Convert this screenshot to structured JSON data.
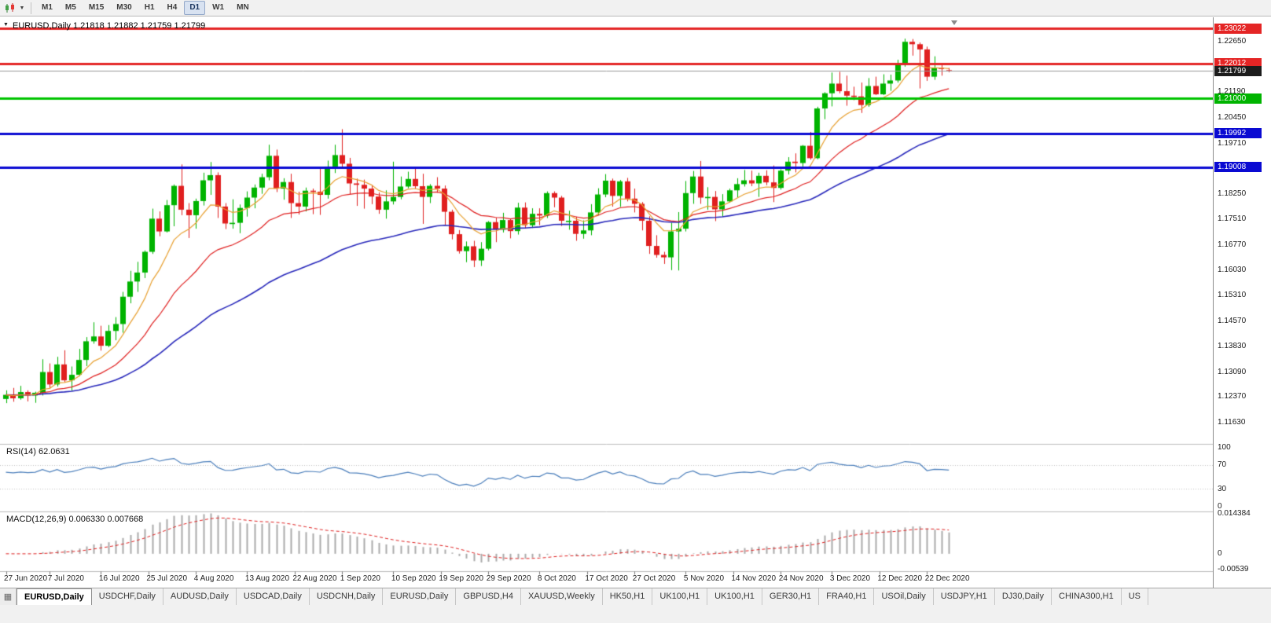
{
  "toolbar": {
    "timeframes": [
      "M1",
      "M5",
      "M15",
      "M30",
      "H1",
      "H4",
      "D1",
      "W1",
      "MN"
    ],
    "active_timeframe": "D1"
  },
  "main_chart": {
    "title": "EURUSD,Daily 1.21818 1.21882 1.21759 1.21799",
    "symbol": "EURUSD,Daily",
    "open": "1.21818",
    "high": "1.21882",
    "low": "1.21759",
    "close": "1.21799"
  },
  "panes": {
    "rsi_label": "RSI(14) 62.0631",
    "macd_label": "MACD(12,26,9) 0.006330 0.007668"
  },
  "chart_data": [
    {
      "type": "candlestick",
      "title": "EURUSD,Daily",
      "ylim": [
        1.11,
        1.2335
      ],
      "up_color": "#00b300",
      "down_color": "#e01f1f",
      "y_axis_labels": [
        "1.22650",
        "1.21930",
        "1.21190",
        "1.20450",
        "1.19710",
        "1.18970",
        "1.18250",
        "1.17510",
        "1.16770",
        "1.16030",
        "1.15310",
        "1.14570",
        "1.13830",
        "1.13090",
        "1.12370",
        "1.11630"
      ],
      "levels": [
        {
          "label": "1.23022",
          "value": 1.23022,
          "color": "#e42525",
          "badge": "#e42525",
          "width": 3,
          "style": "solid"
        },
        {
          "label": "1.22012",
          "value": 1.22012,
          "color": "#e42525",
          "badge": "#e42525",
          "width": 3,
          "style": "solid"
        },
        {
          "label": "1.21799",
          "value": 1.21799,
          "color": "#9a9a9a",
          "badge": "#1c1c1c",
          "width": 1,
          "style": "bid"
        },
        {
          "label": "1.21000",
          "value": 1.21,
          "color": "#00c400",
          "badge": "#00b400",
          "width": 3,
          "style": "solid"
        },
        {
          "label": "1.19992",
          "value": 1.19992,
          "color": "#0a0ad2",
          "badge": "#0a0ad2",
          "width": 3,
          "style": "solid"
        },
        {
          "label": "1.19008",
          "value": 1.19008,
          "color": "#0a0ad2",
          "badge": "#0a0ad2",
          "width": 3,
          "style": "solid"
        }
      ],
      "overlays": [
        {
          "name": "ma-slow",
          "period": 50,
          "color": "#2828bb",
          "width": 1.6
        },
        {
          "name": "ma-medium",
          "period": 20,
          "color": "#e02020",
          "width": 1.2
        },
        {
          "name": "ma-fast",
          "period": 8,
          "color": "#e8a030",
          "width": 1.2
        }
      ],
      "x_ticks": [
        {
          "label": "27 Jun 2020",
          "i": 1
        },
        {
          "label": "7 Jul 2020",
          "i": 7
        },
        {
          "label": "16 Jul 2020",
          "i": 14
        },
        {
          "label": "25 Jul 2020",
          "i": 20.5
        },
        {
          "label": "4 Aug 2020",
          "i": 27
        },
        {
          "label": "13 Aug 2020",
          "i": 34
        },
        {
          "label": "22 Aug 2020",
          "i": 40.5
        },
        {
          "label": "1 Sep 2020",
          "i": 47
        },
        {
          "label": "10 Sep 2020",
          "i": 54
        },
        {
          "label": "19 Sep 2020",
          "i": 60.5
        },
        {
          "label": "29 Sep 2020",
          "i": 67
        },
        {
          "label": "8 Oct 2020",
          "i": 74
        },
        {
          "label": "17 Oct 2020",
          "i": 80.5
        },
        {
          "label": "27 Oct 2020",
          "i": 87
        },
        {
          "label": "5 Nov 2020",
          "i": 94
        },
        {
          "label": "14 Nov 2020",
          "i": 100.5
        },
        {
          "label": "24 Nov 2020",
          "i": 107
        },
        {
          "label": "3 Dec 2020",
          "i": 114
        },
        {
          "label": "12 Dec 2020",
          "i": 120.5
        },
        {
          "label": "22 Dec 2020",
          "i": 127
        }
      ],
      "ohlc": [
        [
          1.123,
          1.1255,
          1.1218,
          1.1242
        ],
        [
          1.1242,
          1.1262,
          1.1222,
          1.1232
        ],
        [
          1.1232,
          1.1268,
          1.1228,
          1.125
        ],
        [
          1.125,
          1.1255,
          1.1223,
          1.124
        ],
        [
          1.124,
          1.1251,
          1.1219,
          1.1248
        ],
        [
          1.1248,
          1.1345,
          1.124,
          1.1308
        ],
        [
          1.1308,
          1.1333,
          1.1259,
          1.1272
        ],
        [
          1.1272,
          1.1352,
          1.1266,
          1.133
        ],
        [
          1.133,
          1.1371,
          1.1279,
          1.1284
        ],
        [
          1.1284,
          1.1324,
          1.1254,
          1.13
        ],
        [
          1.13,
          1.1375,
          1.1296,
          1.1343
        ],
        [
          1.1343,
          1.1409,
          1.1325,
          1.1397
        ],
        [
          1.1397,
          1.1452,
          1.139,
          1.1411
        ],
        [
          1.1411,
          1.1442,
          1.137,
          1.1384
        ],
        [
          1.1384,
          1.1444,
          1.138,
          1.1427
        ],
        [
          1.1427,
          1.1467,
          1.14,
          1.1447
        ],
        [
          1.1447,
          1.154,
          1.1422,
          1.1526
        ],
        [
          1.1526,
          1.1601,
          1.1507,
          1.157
        ],
        [
          1.157,
          1.1627,
          1.154,
          1.1596
        ],
        [
          1.1596,
          1.166,
          1.158,
          1.1656
        ],
        [
          1.1656,
          1.1781,
          1.165,
          1.1752
        ],
        [
          1.1752,
          1.1773,
          1.1701,
          1.1715
        ],
        [
          1.1715,
          1.1806,
          1.1712,
          1.1791
        ],
        [
          1.1791,
          1.1851,
          1.173,
          1.1847
        ],
        [
          1.1847,
          1.1909,
          1.1762,
          1.1778
        ],
        [
          1.1778,
          1.1797,
          1.1696,
          1.1762
        ],
        [
          1.1762,
          1.181,
          1.1723,
          1.1803
        ],
        [
          1.1803,
          1.1885,
          1.179,
          1.1863
        ],
        [
          1.1863,
          1.1916,
          1.1821,
          1.1878
        ],
        [
          1.1878,
          1.1886,
          1.1754,
          1.1787
        ],
        [
          1.1787,
          1.1797,
          1.1722,
          1.1738
        ],
        [
          1.1738,
          1.1808,
          1.1723,
          1.174
        ],
        [
          1.174,
          1.1793,
          1.171,
          1.1783
        ],
        [
          1.1783,
          1.1831,
          1.1758,
          1.1813
        ],
        [
          1.1813,
          1.1851,
          1.1782,
          1.1842
        ],
        [
          1.1842,
          1.1882,
          1.1824,
          1.1872
        ],
        [
          1.1872,
          1.1966,
          1.1863,
          1.1934
        ],
        [
          1.1934,
          1.1952,
          1.1829,
          1.1839
        ],
        [
          1.1839,
          1.1869,
          1.1807,
          1.1858
        ],
        [
          1.1858,
          1.1882,
          1.1754,
          1.1797
        ],
        [
          1.1797,
          1.183,
          1.1764,
          1.1787
        ],
        [
          1.1787,
          1.1842,
          1.1773,
          1.1833
        ],
        [
          1.1833,
          1.1839,
          1.1765,
          1.183
        ],
        [
          1.183,
          1.19,
          1.1763,
          1.1821
        ],
        [
          1.1821,
          1.192,
          1.181,
          1.1903
        ],
        [
          1.1903,
          1.1966,
          1.1884,
          1.1936
        ],
        [
          1.1936,
          1.2011,
          1.1902,
          1.1911
        ],
        [
          1.1911,
          1.1928,
          1.1823,
          1.1854
        ],
        [
          1.1854,
          1.1868,
          1.1789,
          1.185
        ],
        [
          1.185,
          1.1865,
          1.1781,
          1.1839
        ],
        [
          1.1839,
          1.1849,
          1.1794,
          1.1816
        ],
        [
          1.1816,
          1.1828,
          1.1766,
          1.1778
        ],
        [
          1.1778,
          1.1834,
          1.1752,
          1.1802
        ],
        [
          1.1802,
          1.1917,
          1.1793,
          1.1815
        ],
        [
          1.1815,
          1.1874,
          1.1808,
          1.1845
        ],
        [
          1.1845,
          1.1888,
          1.184,
          1.1867
        ],
        [
          1.1867,
          1.1901,
          1.1838,
          1.1846
        ],
        [
          1.1846,
          1.1882,
          1.1737,
          1.1815
        ],
        [
          1.1815,
          1.1852,
          1.1797,
          1.1847
        ],
        [
          1.1847,
          1.1872,
          1.1827,
          1.1839
        ],
        [
          1.1839,
          1.1848,
          1.1732,
          1.1772
        ],
        [
          1.1772,
          1.1778,
          1.1692,
          1.1707
        ],
        [
          1.1707,
          1.1719,
          1.1651,
          1.1658
        ],
        [
          1.1658,
          1.1686,
          1.1626,
          1.1672
        ],
        [
          1.1672,
          1.1688,
          1.1612,
          1.1631
        ],
        [
          1.1631,
          1.1684,
          1.1615,
          1.1665
        ],
        [
          1.1665,
          1.1745,
          1.166,
          1.1742
        ],
        [
          1.1742,
          1.1755,
          1.1684,
          1.172
        ],
        [
          1.172,
          1.1769,
          1.1712,
          1.1748
        ],
        [
          1.1748,
          1.1751,
          1.1695,
          1.1716
        ],
        [
          1.1716,
          1.1798,
          1.1706,
          1.1784
        ],
        [
          1.1784,
          1.1799,
          1.1724,
          1.1733
        ],
        [
          1.1733,
          1.1782,
          1.1725,
          1.1766
        ],
        [
          1.1766,
          1.1782,
          1.1733,
          1.1761
        ],
        [
          1.1761,
          1.1831,
          1.1754,
          1.1826
        ],
        [
          1.1826,
          1.1831,
          1.1785,
          1.1813
        ],
        [
          1.1813,
          1.1818,
          1.1731,
          1.1746
        ],
        [
          1.1746,
          1.1775,
          1.172,
          1.1746
        ],
        [
          1.1746,
          1.1758,
          1.1688,
          1.1708
        ],
        [
          1.1708,
          1.1747,
          1.1694,
          1.1718
        ],
        [
          1.1718,
          1.1794,
          1.1704,
          1.177
        ],
        [
          1.177,
          1.184,
          1.1762,
          1.1822
        ],
        [
          1.1822,
          1.1881,
          1.1814,
          1.1862
        ],
        [
          1.1862,
          1.1868,
          1.1787,
          1.1818
        ],
        [
          1.1818,
          1.1864,
          1.1786,
          1.186
        ],
        [
          1.186,
          1.187,
          1.1802,
          1.181
        ],
        [
          1.181,
          1.1839,
          1.177,
          1.1795
        ],
        [
          1.1795,
          1.18,
          1.1718,
          1.1746
        ],
        [
          1.1746,
          1.1759,
          1.165,
          1.1673
        ],
        [
          1.1673,
          1.1704,
          1.1639,
          1.1647
        ],
        [
          1.1647,
          1.1656,
          1.1621,
          1.164
        ],
        [
          1.164,
          1.174,
          1.1603,
          1.1715
        ],
        [
          1.1715,
          1.1771,
          1.1602,
          1.1723
        ],
        [
          1.1723,
          1.1861,
          1.1715,
          1.1826
        ],
        [
          1.1826,
          1.189,
          1.1795,
          1.1874
        ],
        [
          1.1874,
          1.1919,
          1.1795,
          1.1813
        ],
        [
          1.1813,
          1.1843,
          1.1778,
          1.1815
        ],
        [
          1.1815,
          1.1832,
          1.1745,
          1.1779
        ],
        [
          1.1779,
          1.1823,
          1.1758,
          1.1802
        ],
        [
          1.1802,
          1.1839,
          1.1799,
          1.1834
        ],
        [
          1.1834,
          1.1869,
          1.1814,
          1.1852
        ],
        [
          1.1852,
          1.1893,
          1.1845,
          1.1863
        ],
        [
          1.1863,
          1.1891,
          1.1846,
          1.1854
        ],
        [
          1.1854,
          1.1885,
          1.1815,
          1.1876
        ],
        [
          1.1876,
          1.1892,
          1.1849,
          1.1857
        ],
        [
          1.1857,
          1.1906,
          1.18,
          1.1841
        ],
        [
          1.1841,
          1.1895,
          1.1836,
          1.1891
        ],
        [
          1.1891,
          1.193,
          1.188,
          1.1917
        ],
        [
          1.1917,
          1.1941,
          1.1886,
          1.1913
        ],
        [
          1.1913,
          1.1965,
          1.1903,
          1.1963
        ],
        [
          1.1963,
          1.2003,
          1.1923,
          1.1927
        ],
        [
          1.1927,
          1.2076,
          1.1924,
          1.2071
        ],
        [
          1.2071,
          1.2118,
          1.204,
          1.2115
        ],
        [
          1.2115,
          1.2175,
          1.2077,
          1.2143
        ],
        [
          1.2143,
          1.2177,
          1.2115,
          1.2121
        ],
        [
          1.2121,
          1.2166,
          1.2079,
          1.2108
        ],
        [
          1.2108,
          1.2134,
          1.2095,
          1.2106
        ],
        [
          1.2106,
          1.2146,
          1.2058,
          1.2081
        ],
        [
          1.2081,
          1.2159,
          1.2076,
          1.2136
        ],
        [
          1.2136,
          1.2163,
          1.211,
          1.2112
        ],
        [
          1.2112,
          1.217,
          1.211,
          1.2143
        ],
        [
          1.2143,
          1.2169,
          1.2122,
          1.2152
        ],
        [
          1.2152,
          1.2212,
          1.2146,
          1.22
        ],
        [
          1.22,
          1.2273,
          1.2192,
          1.2264
        ],
        [
          1.2264,
          1.2272,
          1.2224,
          1.2257
        ],
        [
          1.2257,
          1.2262,
          1.2129,
          1.2242
        ],
        [
          1.2242,
          1.225,
          1.2151,
          1.2163
        ],
        [
          1.2163,
          1.2222,
          1.2154,
          1.2189
        ],
        [
          1.2189,
          1.2198,
          1.2166,
          1.2187
        ],
        [
          1.21818,
          1.21882,
          1.21759,
          1.21799
        ]
      ]
    },
    {
      "type": "line",
      "name": "RSI(14)",
      "period": 14,
      "current": 62.0631,
      "color": "#4a7ebb",
      "guide_levels": [
        70,
        30
      ],
      "y_axis": [
        {
          "label": "100",
          "value": 100
        },
        {
          "label": "70",
          "value": 70
        },
        {
          "label": "30",
          "value": 30
        },
        {
          "label": "0",
          "value": 0
        }
      ],
      "scale": {
        "vmin": -8,
        "vmax": 104
      }
    },
    {
      "type": "macd",
      "name": "MACD(12,26,9)",
      "params": [
        12,
        26,
        9
      ],
      "current_macd": 0.00633,
      "current_signal": 0.007668,
      "histogram_color": "#ababab",
      "signal_color": "#e02020",
      "y_axis": [
        {
          "label": "0.014384",
          "value": 0.014384
        },
        {
          "label": "0",
          "value": 0
        },
        {
          "label": "-0.00539",
          "value": -0.00539
        }
      ],
      "scale": {
        "vmin": -0.0056,
        "vmax": 0.0147
      }
    }
  ],
  "tabbar": {
    "corner_icon": "window-list-icon",
    "items": [
      {
        "label": "EURUSD,Daily",
        "active": true
      },
      {
        "label": "USDCHF,Daily",
        "active": false
      },
      {
        "label": "AUDUSD,Daily",
        "active": false
      },
      {
        "label": "USDCAD,Daily",
        "active": false
      },
      {
        "label": "USDCNH,Daily",
        "active": false
      },
      {
        "label": "EURUSD,Daily",
        "active": false
      },
      {
        "label": "GBPUSD,H4",
        "active": false
      },
      {
        "label": "XAUUSD,Weekly",
        "active": false
      },
      {
        "label": "HK50,H1",
        "active": false
      },
      {
        "label": "UK100,H1",
        "active": false
      },
      {
        "label": "UK100,H1",
        "active": false
      },
      {
        "label": "GER30,H1",
        "active": false
      },
      {
        "label": "FRA40,H1",
        "active": false
      },
      {
        "label": "USOil,Daily",
        "active": false
      },
      {
        "label": "USDJPY,H1",
        "active": false
      },
      {
        "label": "DJ30,Daily",
        "active": false
      },
      {
        "label": "CHINA300,H1",
        "active": false
      },
      {
        "label": "US",
        "active": false
      }
    ]
  }
}
